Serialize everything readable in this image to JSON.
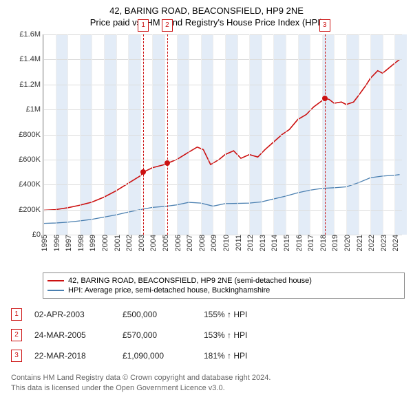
{
  "title_line1": "42, BARING ROAD, BEACONSFIELD, HP9 2NE",
  "title_line2": "Price paid vs. HM Land Registry's House Price Index (HPI)",
  "chart": {
    "type": "line",
    "background_color": "#ffffff",
    "grid_color": "#dddddd",
    "axis_color": "#888888",
    "y": {
      "min": 0,
      "max": 1600000,
      "ticks": [
        0,
        200000,
        400000,
        600000,
        800000,
        1000000,
        1200000,
        1400000,
        1600000
      ],
      "tick_labels": [
        "£0",
        "£200K",
        "£400K",
        "£600K",
        "£800K",
        "£1M",
        "£1.2M",
        "£1.4M",
        "£1.6M"
      ],
      "label_fontsize": 11
    },
    "x": {
      "min": 1995,
      "max": 2024.6,
      "ticks": [
        1995,
        1996,
        1997,
        1998,
        1999,
        2000,
        2001,
        2002,
        2003,
        2004,
        2005,
        2006,
        2007,
        2008,
        2009,
        2010,
        2011,
        2012,
        2013,
        2014,
        2015,
        2016,
        2017,
        2018,
        2019,
        2020,
        2021,
        2022,
        2023,
        2024
      ],
      "tick_rotation": -90,
      "label_fontsize": 11
    },
    "band_color": "#e3ecf7",
    "bands_years": [
      1996,
      1998,
      2000,
      2002,
      2004,
      2006,
      2008,
      2010,
      2012,
      2014,
      2016,
      2018,
      2020,
      2022,
      2024
    ],
    "series": [
      {
        "name": "property",
        "label": "42, BARING ROAD, BEACONSFIELD, HP9 2NE (semi-detached house)",
        "color": "#cc1111",
        "line_width": 1.6,
        "data": [
          [
            1995.0,
            195000
          ],
          [
            1996.0,
            200000
          ],
          [
            1997.0,
            215000
          ],
          [
            1998.0,
            235000
          ],
          [
            1999.0,
            260000
          ],
          [
            2000.0,
            300000
          ],
          [
            2001.0,
            350000
          ],
          [
            2002.0,
            410000
          ],
          [
            2003.0,
            470000
          ],
          [
            2003.25,
            500000
          ],
          [
            2004.0,
            535000
          ],
          [
            2005.0,
            560000
          ],
          [
            2005.22,
            570000
          ],
          [
            2006.0,
            600000
          ],
          [
            2007.0,
            660000
          ],
          [
            2007.7,
            700000
          ],
          [
            2008.2,
            680000
          ],
          [
            2008.8,
            560000
          ],
          [
            2009.5,
            600000
          ],
          [
            2010.0,
            640000
          ],
          [
            2010.7,
            670000
          ],
          [
            2011.3,
            610000
          ],
          [
            2012.0,
            640000
          ],
          [
            2012.7,
            620000
          ],
          [
            2013.3,
            680000
          ],
          [
            2014.0,
            740000
          ],
          [
            2014.7,
            800000
          ],
          [
            2015.3,
            840000
          ],
          [
            2016.0,
            920000
          ],
          [
            2016.7,
            960000
          ],
          [
            2017.3,
            1020000
          ],
          [
            2018.0,
            1070000
          ],
          [
            2018.22,
            1090000
          ],
          [
            2018.6,
            1080000
          ],
          [
            2019.0,
            1050000
          ],
          [
            2019.6,
            1060000
          ],
          [
            2020.0,
            1040000
          ],
          [
            2020.6,
            1060000
          ],
          [
            2021.0,
            1110000
          ],
          [
            2021.6,
            1190000
          ],
          [
            2022.0,
            1250000
          ],
          [
            2022.6,
            1310000
          ],
          [
            2023.0,
            1290000
          ],
          [
            2023.5,
            1330000
          ],
          [
            2024.0,
            1370000
          ],
          [
            2024.4,
            1400000
          ]
        ]
      },
      {
        "name": "hpi",
        "label": "HPI: Average price, semi-detached house, Buckinghamshire",
        "color": "#4a7fb0",
        "line_width": 1.3,
        "data": [
          [
            1995.0,
            90000
          ],
          [
            1996.0,
            93000
          ],
          [
            1997.0,
            100000
          ],
          [
            1998.0,
            110000
          ],
          [
            1999.0,
            122000
          ],
          [
            2000.0,
            140000
          ],
          [
            2001.0,
            158000
          ],
          [
            2002.0,
            180000
          ],
          [
            2003.0,
            200000
          ],
          [
            2004.0,
            218000
          ],
          [
            2005.0,
            225000
          ],
          [
            2006.0,
            238000
          ],
          [
            2007.0,
            258000
          ],
          [
            2008.0,
            252000
          ],
          [
            2009.0,
            228000
          ],
          [
            2010.0,
            248000
          ],
          [
            2011.0,
            250000
          ],
          [
            2012.0,
            252000
          ],
          [
            2013.0,
            262000
          ],
          [
            2014.0,
            285000
          ],
          [
            2015.0,
            308000
          ],
          [
            2016.0,
            335000
          ],
          [
            2017.0,
            355000
          ],
          [
            2018.0,
            370000
          ],
          [
            2019.0,
            375000
          ],
          [
            2020.0,
            382000
          ],
          [
            2021.0,
            415000
          ],
          [
            2022.0,
            455000
          ],
          [
            2023.0,
            468000
          ],
          [
            2024.0,
            475000
          ],
          [
            2024.4,
            480000
          ]
        ]
      }
    ],
    "sale_markers": [
      {
        "n": "1",
        "x": 2003.25,
        "y": 500000
      },
      {
        "n": "2",
        "x": 2005.22,
        "y": 570000
      },
      {
        "n": "3",
        "x": 2018.22,
        "y": 1090000
      }
    ],
    "marker_color": "#cc1111",
    "vline_color": "#cc1111",
    "point_radius": 4
  },
  "legend": {
    "items": [
      {
        "color": "#cc1111",
        "label": "42, BARING ROAD, BEACONSFIELD, HP9 2NE (semi-detached house)"
      },
      {
        "color": "#4a7fb0",
        "label": "HPI: Average price, semi-detached house, Buckinghamshire"
      }
    ]
  },
  "sales": [
    {
      "n": "1",
      "date": "02-APR-2003",
      "price": "£500,000",
      "hpi": "155% ↑ HPI"
    },
    {
      "n": "2",
      "date": "24-MAR-2005",
      "price": "£570,000",
      "hpi": "153% ↑ HPI"
    },
    {
      "n": "3",
      "date": "22-MAR-2018",
      "price": "£1,090,000",
      "hpi": "181% ↑ HPI"
    }
  ],
  "footer_line1": "Contains HM Land Registry data © Crown copyright and database right 2024.",
  "footer_line2": "This data is licensed under the Open Government Licence v3.0."
}
